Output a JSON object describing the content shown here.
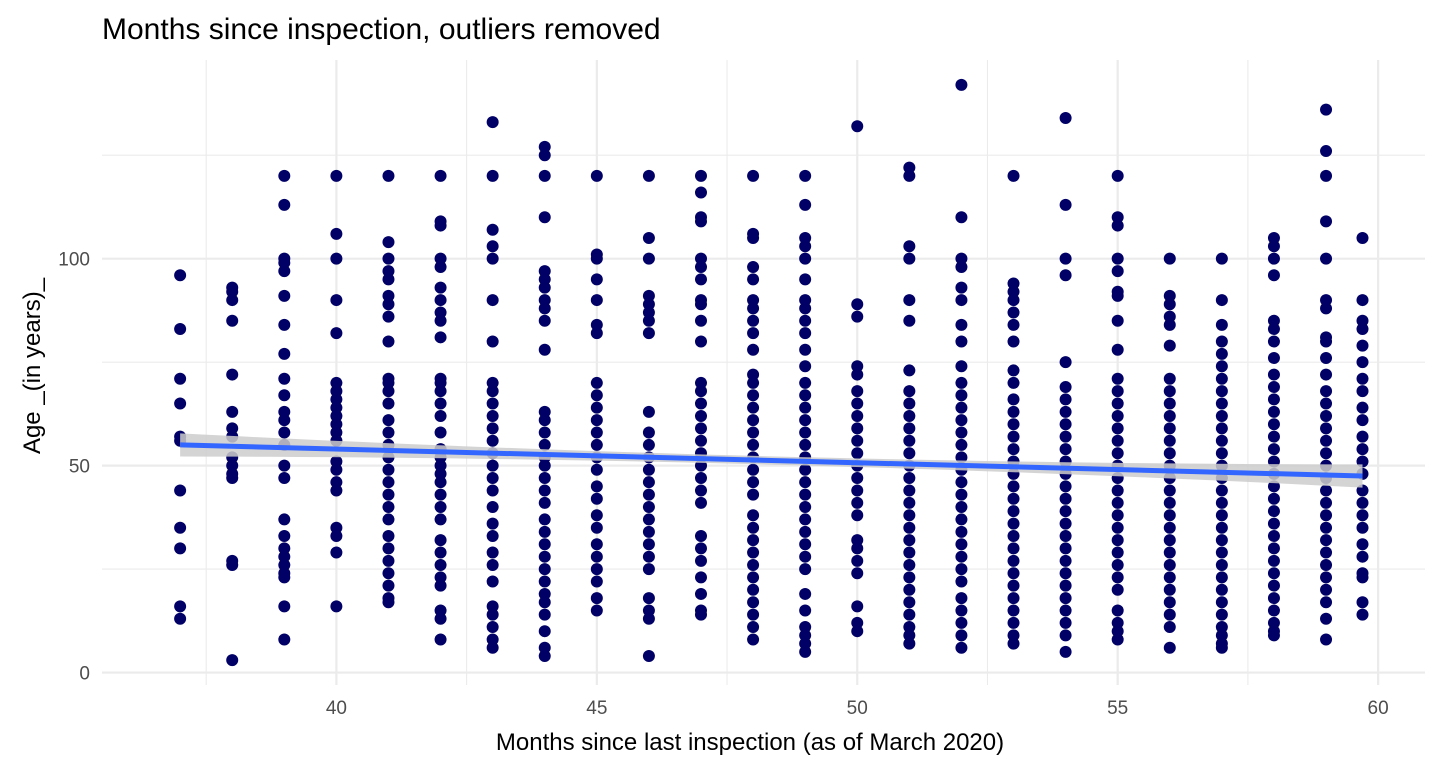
{
  "chart_data": {
    "type": "scatter",
    "title": "Months since inspection, outliers removed",
    "xlabel": "Months since last inspection (as of March 2020)",
    "ylabel": "Age _(in years)_",
    "xlim": [
      35.5,
      60.9
    ],
    "ylim": [
      -3,
      148
    ],
    "x_ticks": [
      40,
      45,
      50,
      55,
      60
    ],
    "y_ticks": [
      0,
      50,
      100
    ],
    "grid": true,
    "point_color": "#000066",
    "trend_color": "#3366FF",
    "ribbon_color": "#CCCCCC",
    "trend": {
      "x": [
        37,
        59.7
      ],
      "y": [
        55,
        47.5
      ],
      "ci_half_width_ends": 2.8,
      "ci_half_width_mid": 1.0
    },
    "series": [
      {
        "points": [
          {
            "x": 37,
            "ys": [
              96,
              83,
              71,
              65,
              57,
              56,
              44,
              35,
              30,
              16,
              13
            ]
          },
          {
            "x": 38,
            "ys": [
              93,
              92,
              90,
              85,
              72,
              63,
              59,
              57,
              52,
              50,
              48,
              47,
              27,
              26,
              3
            ]
          },
          {
            "x": 39,
            "ys": [
              120,
              113,
              100,
              99,
              97,
              91,
              84,
              77,
              71,
              67,
              63,
              61,
              58,
              55,
              50,
              47,
              37,
              33,
              30,
              28,
              26,
              24,
              23,
              16,
              8
            ]
          },
          {
            "x": 40,
            "ys": [
              120,
              106,
              100,
              90,
              82,
              70,
              68,
              66,
              64,
              62,
              60,
              58,
              56,
              51,
              49,
              46,
              44,
              35,
              33,
              29,
              16
            ]
          },
          {
            "x": 41,
            "ys": [
              120,
              104,
              100,
              97,
              95,
              91,
              89,
              86,
              80,
              71,
              70,
              68,
              65,
              61,
              58,
              55,
              52,
              49,
              46,
              43,
              40,
              37,
              33,
              30,
              27,
              24,
              21,
              18,
              17
            ]
          },
          {
            "x": 42,
            "ys": [
              120,
              109,
              108,
              100,
              98,
              93,
              90,
              87,
              85,
              81,
              71,
              70,
              68,
              65,
              62,
              58,
              54,
              52,
              50,
              48,
              46,
              43,
              40,
              37,
              32,
              29,
              26,
              23,
              21,
              15,
              13,
              8
            ]
          },
          {
            "x": 43,
            "ys": [
              133,
              120,
              107,
              103,
              100,
              90,
              80,
              70,
              68,
              65,
              62,
              59,
              56,
              53,
              50,
              47,
              44,
              40,
              36,
              33,
              29,
              26,
              22,
              16,
              14,
              11,
              8,
              6
            ]
          },
          {
            "x": 44,
            "ys": [
              127,
              125,
              120,
              110,
              97,
              95,
              93,
              90,
              88,
              85,
              78,
              63,
              61,
              58,
              55,
              52,
              50,
              47,
              44,
              41,
              37,
              34,
              31,
              28,
              25,
              22,
              19,
              17,
              14,
              10,
              6,
              4
            ]
          },
          {
            "x": 45,
            "ys": [
              120,
              101,
              100,
              95,
              90,
              84,
              82,
              70,
              67,
              64,
              61,
              58,
              55,
              52,
              49,
              45,
              42,
              38,
              35,
              31,
              28,
              25,
              22,
              18,
              15
            ]
          },
          {
            "x": 46,
            "ys": [
              120,
              105,
              100,
              91,
              89,
              87,
              85,
              82,
              63,
              58,
              55,
              52,
              49,
              46,
              43,
              40,
              37,
              34,
              31,
              28,
              25,
              18,
              15,
              13,
              4
            ]
          },
          {
            "x": 47,
            "ys": [
              120,
              116,
              110,
              109,
              100,
              98,
              95,
              90,
              89,
              85,
              80,
              70,
              68,
              65,
              62,
              59,
              56,
              53,
              50,
              47,
              44,
              41,
              33,
              30,
              27,
              23,
              19,
              15,
              14
            ]
          },
          {
            "x": 48,
            "ys": [
              120,
              106,
              105,
              98,
              95,
              90,
              88,
              85,
              82,
              78,
              72,
              70,
              67,
              64,
              61,
              58,
              55,
              52,
              49,
              46,
              43,
              38,
              35,
              32,
              29,
              26,
              23,
              20,
              17,
              14,
              11,
              8
            ]
          },
          {
            "x": 49,
            "ys": [
              120,
              113,
              105,
              103,
              100,
              95,
              90,
              88,
              85,
              82,
              78,
              74,
              70,
              67,
              64,
              61,
              58,
              55,
              52,
              49,
              46,
              43,
              40,
              37,
              34,
              31,
              28,
              25,
              19,
              15,
              11,
              9,
              7,
              5
            ]
          },
          {
            "x": 50,
            "ys": [
              132,
              89,
              86,
              74,
              72,
              68,
              65,
              62,
              59,
              56,
              53,
              50,
              47,
              44,
              41,
              38,
              32,
              30,
              27,
              24,
              16,
              12,
              10
            ]
          },
          {
            "x": 51,
            "ys": [
              122,
              120,
              103,
              100,
              90,
              85,
              73,
              68,
              65,
              62,
              59,
              56,
              53,
              50,
              47,
              44,
              41,
              38,
              35,
              32,
              29,
              26,
              23,
              20,
              17,
              14,
              11,
              9,
              7
            ]
          },
          {
            "x": 52,
            "ys": [
              142,
              110,
              100,
              98,
              93,
              90,
              84,
              80,
              74,
              70,
              67,
              64,
              61,
              58,
              55,
              52,
              49,
              46,
              43,
              40,
              37,
              34,
              31,
              28,
              25,
              22,
              18,
              15,
              12,
              9,
              6
            ]
          },
          {
            "x": 53,
            "ys": [
              120,
              94,
              92,
              90,
              87,
              84,
              80,
              73,
              70,
              66,
              63,
              60,
              57,
              54,
              51,
              48,
              45,
              42,
              39,
              36,
              33,
              30,
              27,
              24,
              21,
              18,
              15,
              12,
              9,
              7
            ]
          },
          {
            "x": 54,
            "ys": [
              134,
              113,
              100,
              96,
              75,
              69,
              66,
              63,
              60,
              57,
              54,
              51,
              48,
              45,
              42,
              39,
              36,
              33,
              30,
              27,
              24,
              21,
              18,
              15,
              12,
              9,
              5
            ]
          },
          {
            "x": 55,
            "ys": [
              120,
              110,
              108,
              100,
              97,
              92,
              91,
              85,
              78,
              71,
              68,
              65,
              62,
              59,
              56,
              53,
              50,
              47,
              44,
              41,
              38,
              35,
              32,
              29,
              26,
              23,
              20,
              15,
              12,
              10,
              8
            ]
          },
          {
            "x": 56,
            "ys": [
              100,
              91,
              89,
              86,
              84,
              79,
              71,
              68,
              65,
              62,
              59,
              56,
              53,
              50,
              47,
              44,
              41,
              38,
              35,
              32,
              29,
              26,
              23,
              20,
              17,
              14,
              11,
              6
            ]
          },
          {
            "x": 57,
            "ys": [
              100,
              90,
              84,
              80,
              77,
              74,
              71,
              68,
              65,
              62,
              59,
              56,
              53,
              50,
              47,
              44,
              41,
              38,
              35,
              32,
              29,
              26,
              23,
              20,
              17,
              14,
              11,
              9,
              7,
              6
            ]
          },
          {
            "x": 58,
            "ys": [
              105,
              103,
              100,
              96,
              85,
              83,
              80,
              76,
              72,
              69,
              66,
              63,
              60,
              57,
              54,
              51,
              48,
              45,
              42,
              39,
              36,
              33,
              30,
              27,
              24,
              21,
              18,
              15,
              12,
              10,
              9
            ]
          },
          {
            "x": 59,
            "ys": [
              136,
              126,
              120,
              109,
              100,
              90,
              88,
              81,
              80,
              76,
              72,
              68,
              65,
              62,
              59,
              56,
              53,
              50,
              47,
              44,
              41,
              38,
              35,
              32,
              29,
              26,
              23,
              20,
              17,
              13,
              8
            ]
          },
          {
            "x": 59.7,
            "ys": [
              105,
              90,
              85,
              83,
              79,
              75,
              71,
              68,
              64,
              61,
              57,
              54,
              51,
              48,
              44,
              41,
              38,
              35,
              31,
              28,
              24,
              23,
              17,
              14
            ]
          }
        ]
      }
    ]
  }
}
